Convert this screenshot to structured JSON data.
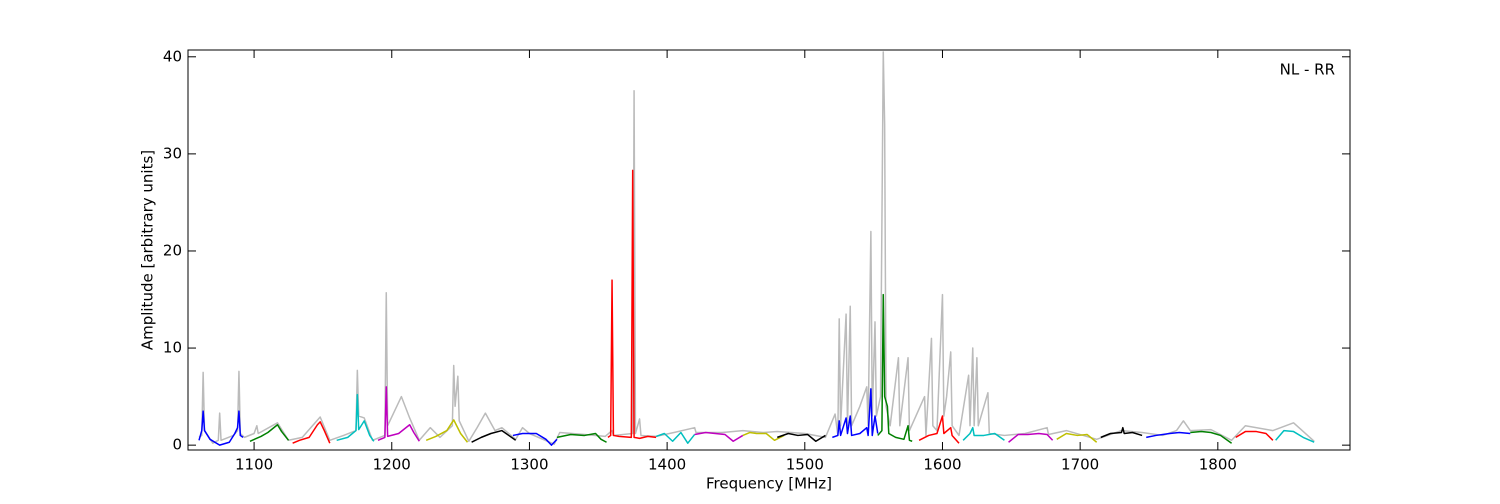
{
  "chart_data": {
    "type": "line",
    "annotation": "NL - RR",
    "x_label": "Frequency [MHz]",
    "y_label": "Amplitude [arbitrary units]",
    "xlim": [
      1052,
      1896
    ],
    "ylim": [
      -0.5,
      40.7
    ],
    "xticks": [
      1100,
      1200,
      1300,
      1400,
      1500,
      1600,
      1700,
      1800
    ],
    "yticks": [
      0,
      10,
      20,
      30,
      40
    ],
    "series": [
      {
        "color": "#bbbbbb",
        "x": [
          1060,
          1062,
          1063,
          1064,
          1070,
          1074,
          1075,
          1076,
          1085,
          1088,
          1089,
          1090,
          1093,
          1100,
          1102,
          1103,
          1117,
          1125,
          1135,
          1148,
          1155,
          1165,
          1174,
          1175,
          1176,
          1180,
          1186,
          1195,
          1196,
          1197,
          1207,
          1213,
          1220,
          1228,
          1235,
          1244,
          1245,
          1246,
          1248,
          1249,
          1256,
          1262,
          1268,
          1275,
          1280,
          1290,
          1295,
          1300,
          1318,
          1322,
          1340,
          1355,
          1360,
          1361,
          1375,
          1376,
          1377,
          1380,
          1381,
          1392,
          1405,
          1420,
          1421,
          1440,
          1455,
          1470,
          1480,
          1500,
          1515,
          1522,
          1524,
          1525,
          1526,
          1530,
          1531,
          1533,
          1534,
          1540,
          1545,
          1546,
          1548,
          1549,
          1551,
          1552,
          1555,
          1557,
          1558,
          1559,
          1562,
          1568,
          1569,
          1575,
          1576,
          1587,
          1588,
          1592,
          1593,
          1596,
          1600,
          1601,
          1603,
          1606,
          1607,
          1612,
          1619,
          1620,
          1622,
          1623,
          1625,
          1626,
          1633,
          1634,
          1645,
          1660,
          1676,
          1677,
          1690,
          1712,
          1730,
          1745,
          1760,
          1770,
          1775,
          1780,
          1795,
          1810,
          1820,
          1840,
          1855,
          1870
        ],
        "values": [
          0.8,
          1,
          7.5,
          1.5,
          0.2,
          0.5,
          3.3,
          0.5,
          1,
          1.5,
          7.6,
          1.2,
          0.8,
          1.2,
          2.0,
          1.2,
          2.3,
          0.5,
          0.8,
          2.9,
          0.5,
          1,
          1.5,
          7.7,
          3,
          2.8,
          0.5,
          1,
          15.7,
          2,
          5,
          2.8,
          0.5,
          1.8,
          0.8,
          2,
          8.2,
          4,
          7.1,
          2.5,
          0.4,
          1.8,
          3.3,
          1.5,
          1.8,
          0.6,
          1.8,
          1.2,
          0.1,
          1.3,
          1.1,
          0.9,
          1.5,
          1.0,
          1.2,
          36.5,
          1.2,
          2.7,
          1,
          0.9,
          1.3,
          1.8,
          1.3,
          1.3,
          1.5,
          1.3,
          1.4,
          1.2,
          0.8,
          3.2,
          1,
          13,
          2,
          13.5,
          2,
          14.3,
          2,
          4,
          6,
          2,
          22,
          3,
          12.7,
          3,
          5,
          40.5,
          33,
          4,
          2,
          9,
          2,
          9,
          1.5,
          5,
          1,
          11,
          2,
          1.5,
          15.5,
          3,
          5,
          9.6,
          2,
          1,
          7.2,
          2,
          10,
          2,
          9,
          2,
          5.4,
          1.2,
          1,
          1.2,
          1.8,
          1.1,
          1.5,
          0.6,
          1.5,
          1.3,
          1.0,
          1.5,
          2.5,
          1.5,
          1.6,
          0.5,
          2,
          1.5,
          2.3,
          0.4
        ]
      },
      {
        "color": "#0000ff",
        "x": [
          1060,
          1062,
          1063,
          1064,
          1068,
          1075,
          1082,
          1086,
          1088,
          1089,
          1090,
          1092
        ],
        "values": [
          0.5,
          1.5,
          3.5,
          1.5,
          0.6,
          0.0,
          0.3,
          1.2,
          1.8,
          3.5,
          1.0,
          0.8
        ]
      },
      {
        "color": "#008000",
        "x": [
          1097,
          1105,
          1110,
          1117,
          1120,
          1125
        ],
        "values": [
          0.4,
          0.9,
          1.3,
          2.1,
          1.4,
          0.5
        ]
      },
      {
        "color": "#ff0000",
        "x": [
          1128,
          1133,
          1140,
          1146,
          1148,
          1151,
          1155
        ],
        "values": [
          0.2,
          0.5,
          0.8,
          2.1,
          2.4,
          1.5,
          0.2
        ]
      },
      {
        "color": "#00bfbf",
        "x": [
          1160,
          1168,
          1174,
          1175,
          1176,
          1180,
          1184,
          1187
        ],
        "values": [
          0.5,
          0.8,
          1.5,
          5.2,
          1.6,
          2.5,
          1.0,
          0.4
        ]
      },
      {
        "color": "#bf00bf",
        "x": [
          1190,
          1195,
          1196,
          1197,
          1205,
          1213,
          1216,
          1220
        ],
        "values": [
          0.5,
          0.8,
          6.0,
          0.9,
          1.2,
          2.1,
          1.3,
          0.4
        ]
      },
      {
        "color": "#bfbf00",
        "x": [
          1225,
          1232,
          1240,
          1245,
          1250,
          1255
        ],
        "values": [
          0.5,
          0.9,
          1.5,
          2.6,
          1.2,
          0.3
        ]
      },
      {
        "color": "#000000",
        "x": [
          1258,
          1265,
          1272,
          1280,
          1285,
          1290
        ],
        "values": [
          0.3,
          0.8,
          1.2,
          1.5,
          1.0,
          0.5
        ]
      },
      {
        "color": "#0000ff",
        "x": [
          1288,
          1295,
          1305,
          1312,
          1316,
          1320
        ],
        "values": [
          1.0,
          1.2,
          1.2,
          0.6,
          0.0,
          0.6
        ]
      },
      {
        "color": "#008000",
        "x": [
          1320,
          1330,
          1340,
          1348,
          1352,
          1356
        ],
        "values": [
          0.8,
          1.1,
          1.0,
          1.2,
          0.6,
          0.3
        ]
      },
      {
        "color": "#ff0000",
        "x": [
          1357,
          1359,
          1360,
          1361,
          1365,
          1374,
          1375,
          1376,
          1380,
          1386,
          1392
        ],
        "values": [
          0.8,
          1.0,
          17,
          1.0,
          0.9,
          0.8,
          28.3,
          0.8,
          0.7,
          0.9,
          0.8
        ]
      },
      {
        "color": "#00bfbf",
        "x": [
          1392,
          1398,
          1404,
          1410,
          1415,
          1420
        ],
        "values": [
          0.9,
          1.2,
          0.4,
          1.3,
          0.2,
          1.1
        ]
      },
      {
        "color": "#bf00bf",
        "x": [
          1420,
          1428,
          1435,
          1442,
          1448,
          1455
        ],
        "values": [
          1.1,
          1.3,
          1.2,
          1.1,
          0.4,
          1.0
        ]
      },
      {
        "color": "#bfbf00",
        "x": [
          1455,
          1460,
          1465,
          1472,
          1478,
          1485
        ],
        "values": [
          1.0,
          1.3,
          1.2,
          1.2,
          0.5,
          1.0
        ]
      },
      {
        "color": "#000000",
        "x": [
          1480,
          1488,
          1495,
          1502,
          1508,
          1515
        ],
        "values": [
          0.8,
          1.2,
          1.0,
          1.1,
          0.4,
          1.0
        ]
      },
      {
        "color": "#0000ff",
        "x": [
          1520,
          1524,
          1525,
          1526,
          1530,
          1531,
          1533,
          1534,
          1540,
          1545,
          1546,
          1548,
          1549,
          1551,
          1553
        ],
        "values": [
          0.8,
          1.0,
          2.5,
          1.0,
          2.8,
          1.2,
          3.0,
          1.0,
          1.2,
          1.8,
          1.0,
          5.8,
          1.0,
          3.0,
          1.2
        ]
      },
      {
        "color": "#008000",
        "x": [
          1553,
          1556,
          1557,
          1558,
          1560,
          1561,
          1566,
          1572,
          1575,
          1576,
          1578
        ],
        "values": [
          1.0,
          1.5,
          15.5,
          5,
          4,
          1.2,
          0.8,
          0.6,
          2,
          0.5,
          0.4
        ]
      },
      {
        "color": "#ff0000",
        "x": [
          1583,
          1590,
          1596,
          1600,
          1601,
          1606,
          1607,
          1612
        ],
        "values": [
          0.5,
          1.0,
          1.2,
          3.0,
          1.2,
          1.8,
          1.0,
          0.2
        ]
      },
      {
        "color": "#00bfbf",
        "x": [
          1615,
          1620,
          1622,
          1623,
          1630,
          1638,
          1645
        ],
        "values": [
          0.5,
          1.2,
          1.8,
          1.0,
          1.0,
          1.2,
          0.5
        ]
      },
      {
        "color": "#bf00bf",
        "x": [
          1648,
          1655,
          1662,
          1670,
          1676,
          1680
        ],
        "values": [
          0.3,
          1.1,
          1.1,
          1.2,
          1.1,
          0.5
        ]
      },
      {
        "color": "#bfbf00",
        "x": [
          1683,
          1690,
          1698,
          1705,
          1712
        ],
        "values": [
          0.6,
          1.2,
          1.0,
          1.1,
          0.3
        ]
      },
      {
        "color": "#000000",
        "x": [
          1715,
          1722,
          1730,
          1731,
          1732,
          1738,
          1745
        ],
        "values": [
          0.8,
          1.2,
          1.3,
          1.8,
          1.2,
          1.3,
          1.0
        ]
      },
      {
        "color": "#0000ff",
        "x": [
          1748,
          1755,
          1765,
          1772,
          1780
        ],
        "values": [
          0.8,
          1.0,
          1.2,
          1.3,
          1.2
        ]
      },
      {
        "color": "#008000",
        "x": [
          1780,
          1788,
          1795,
          1802,
          1810
        ],
        "values": [
          1.3,
          1.4,
          1.3,
          1.0,
          0.2
        ]
      },
      {
        "color": "#ff0000",
        "x": [
          1813,
          1820,
          1828,
          1835,
          1840
        ],
        "values": [
          0.8,
          1.4,
          1.4,
          1.2,
          0.5
        ]
      },
      {
        "color": "#00bfbf",
        "x": [
          1842,
          1848,
          1855,
          1862,
          1870
        ],
        "values": [
          0.5,
          1.5,
          1.4,
          0.8,
          0.3
        ]
      }
    ]
  }
}
